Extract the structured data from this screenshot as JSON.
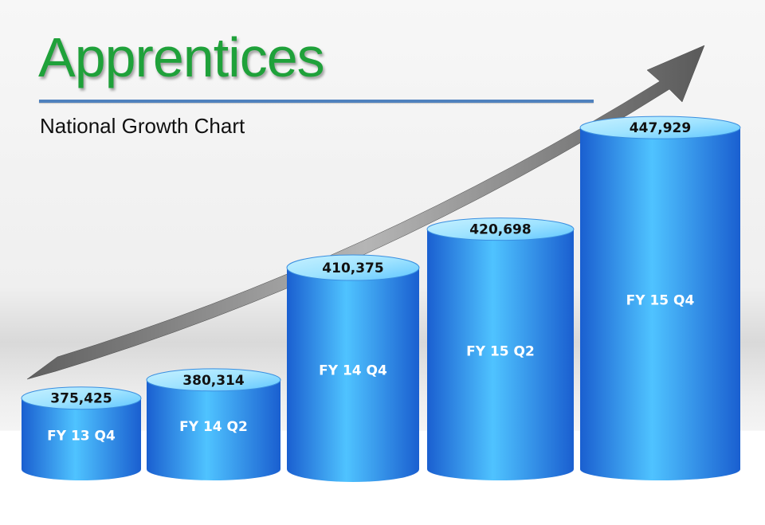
{
  "header": {
    "title": "Apprentices",
    "subtitle": "National Growth Chart"
  },
  "colors": {
    "title": "#1fa13a",
    "divider": "#4f81bd",
    "cylinder_dark": "#1a5fd0",
    "cylinder_light": "#4fc3ff",
    "cylinder_top": "#9fe3ff",
    "arrow": "#6f6f6f"
  },
  "chart_data": {
    "type": "bar",
    "style": "3d-cylinder",
    "categories": [
      "FY 13 Q4",
      "FY 14 Q2",
      "FY 14 Q4",
      "FY 15 Q2",
      "FY 15 Q4"
    ],
    "values": [
      375425,
      380314,
      410375,
      420698,
      447929
    ],
    "data_labels": [
      "375,425",
      "380,314",
      "410,375",
      "420,698",
      "447,929"
    ],
    "title": "Apprentices",
    "subtitle": "National Growth Chart",
    "grid": false,
    "legend": "none",
    "annotation": "upward-trend-arrow"
  }
}
